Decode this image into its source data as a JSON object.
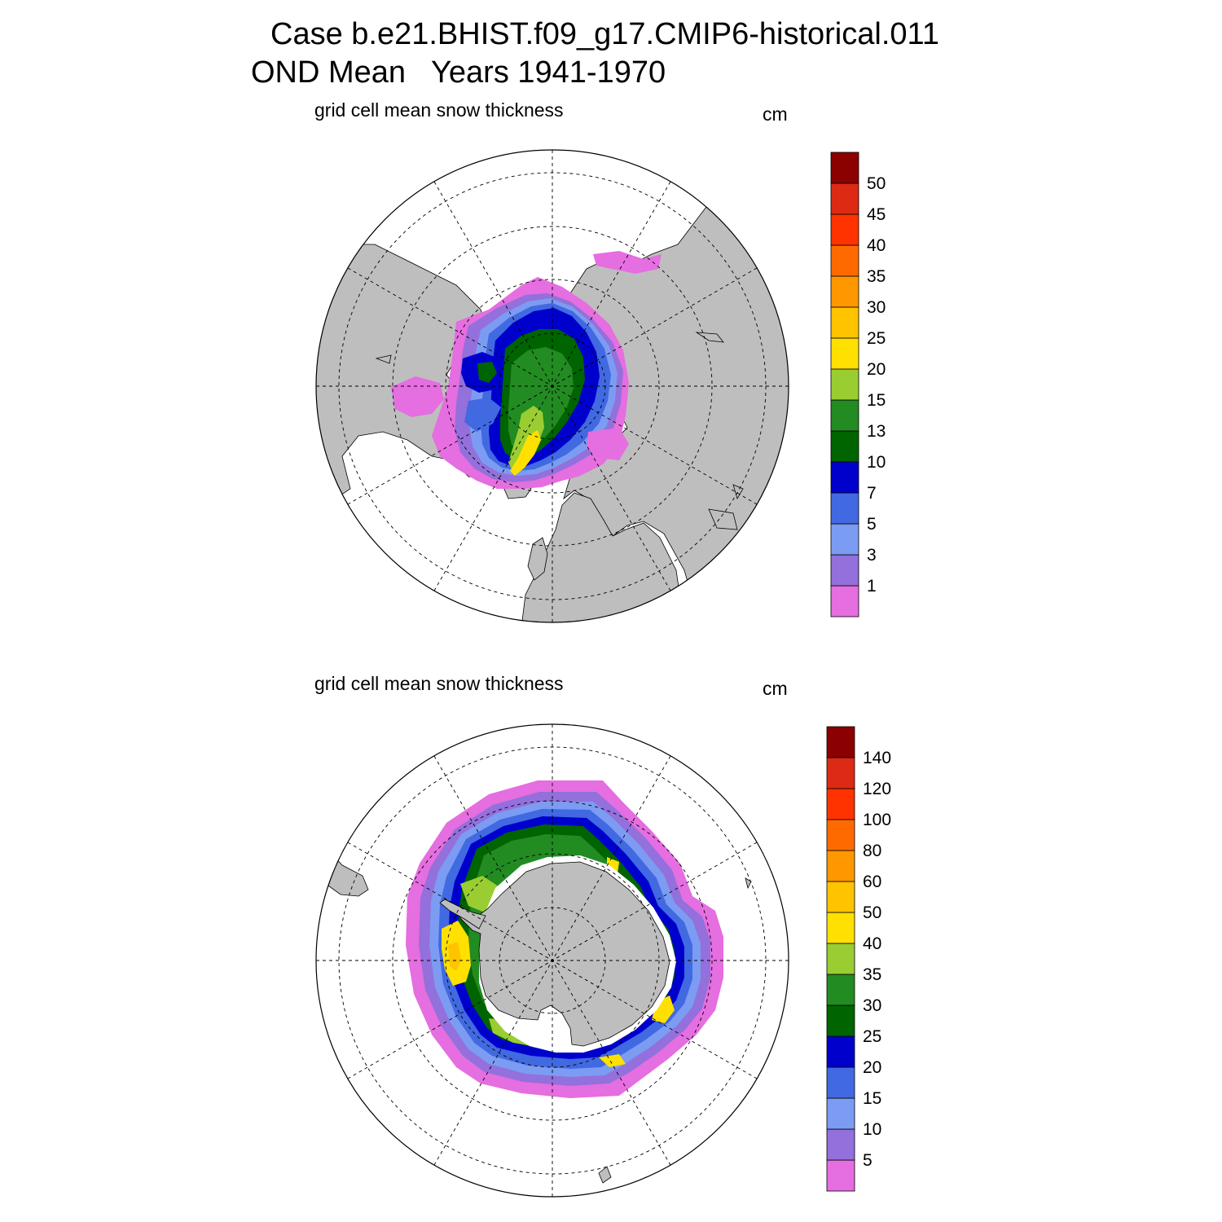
{
  "title": {
    "line1": "Case b.e21.BHIST.f09_g17.CMIP6-historical.011",
    "line2": "OND Mean   Years 1941-1970"
  },
  "colors": {
    "land": "#bebebe",
    "ocean": "#ffffff",
    "palette": [
      "#e56ee0",
      "#9370db",
      "#7b9cf2",
      "#4169e1",
      "#0000cd",
      "#006400",
      "#228b22",
      "#9acd32",
      "#ffe000",
      "#ffc300",
      "#ff9800",
      "#ff6a00",
      "#ff3300",
      "#dd2a14",
      "#8b0000"
    ]
  },
  "panels": [
    {
      "id": "north",
      "hemisphere": "Arctic",
      "subtitle": "grid cell mean snow thickness",
      "units": "cm",
      "colorbar_labels": [
        "1",
        "3",
        "5",
        "7",
        "10",
        "13",
        "15",
        "20",
        "25",
        "30",
        "35",
        "40",
        "45",
        "50"
      ]
    },
    {
      "id": "south",
      "hemisphere": "Antarctic",
      "subtitle": "grid cell mean snow thickness",
      "units": "cm",
      "colorbar_labels": [
        "5",
        "10",
        "15",
        "20",
        "25",
        "30",
        "35",
        "40",
        "50",
        "60",
        "80",
        "100",
        "120",
        "140"
      ]
    }
  ]
}
